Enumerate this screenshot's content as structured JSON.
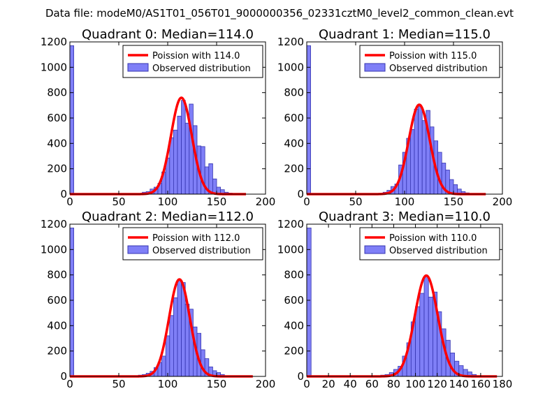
{
  "figure": {
    "suptitle": "Data file: modeM0/AS1T01_056T01_9000000356_02331cztM0_level2_common_clean.evt"
  },
  "colors": {
    "bar_fill": "#7f7ff7",
    "bar_edge": "#3535b0",
    "poisson_line": "#ff0000",
    "axes": "#000000"
  },
  "chart_data": [
    {
      "type": "bar",
      "quadrant": 0,
      "title": "Quadrant 0: Median=114.0",
      "median": 114.0,
      "xlim": [
        0,
        200
      ],
      "ylim": [
        0,
        1200
      ],
      "xticks": [
        0,
        50,
        100,
        150,
        200
      ],
      "yticks": [
        0,
        200,
        400,
        600,
        800,
        1000,
        1200
      ],
      "legend": {
        "position": "top-right",
        "entries": [
          "Poission with 114.0",
          "Observed distribution"
        ]
      },
      "bins": [
        {
          "x": 0,
          "count": 1170
        },
        {
          "x": 74,
          "count": 15
        },
        {
          "x": 78,
          "count": 20
        },
        {
          "x": 82,
          "count": 40
        },
        {
          "x": 86,
          "count": 55
        },
        {
          "x": 90,
          "count": 85
        },
        {
          "x": 94,
          "count": 175
        },
        {
          "x": 98,
          "count": 285
        },
        {
          "x": 102,
          "count": 445
        },
        {
          "x": 106,
          "count": 505
        },
        {
          "x": 110,
          "count": 615
        },
        {
          "x": 114,
          "count": 740
        },
        {
          "x": 118,
          "count": 560
        },
        {
          "x": 122,
          "count": 710
        },
        {
          "x": 126,
          "count": 540
        },
        {
          "x": 130,
          "count": 380
        },
        {
          "x": 134,
          "count": 375
        },
        {
          "x": 138,
          "count": 215
        },
        {
          "x": 142,
          "count": 240
        },
        {
          "x": 146,
          "count": 120
        },
        {
          "x": 150,
          "count": 55
        },
        {
          "x": 154,
          "count": 35
        },
        {
          "x": 158,
          "count": 15
        },
        {
          "x": 162,
          "count": 8
        }
      ],
      "poisson": {
        "label": "Poission with 114.0",
        "mean": 114.0,
        "peak": 760,
        "x_range": [
          0,
          180
        ]
      }
    },
    {
      "type": "bar",
      "quadrant": 1,
      "title": "Quadrant 1: Median=115.0",
      "median": 115.0,
      "xlim": [
        0,
        200
      ],
      "ylim": [
        0,
        1200
      ],
      "xticks": [
        0,
        50,
        100,
        150,
        200
      ],
      "yticks": [
        0,
        200,
        400,
        600,
        800,
        1000,
        1200
      ],
      "legend": {
        "position": "top-right",
        "entries": [
          "Poission with 115.0",
          "Observed distribution"
        ]
      },
      "bins": [
        {
          "x": 0,
          "count": 1170
        },
        {
          "x": 78,
          "count": 15
        },
        {
          "x": 82,
          "count": 30
        },
        {
          "x": 86,
          "count": 60
        },
        {
          "x": 90,
          "count": 80
        },
        {
          "x": 94,
          "count": 230
        },
        {
          "x": 98,
          "count": 330
        },
        {
          "x": 102,
          "count": 440
        },
        {
          "x": 106,
          "count": 510
        },
        {
          "x": 110,
          "count": 670
        },
        {
          "x": 114,
          "count": 690
        },
        {
          "x": 118,
          "count": 580
        },
        {
          "x": 122,
          "count": 660
        },
        {
          "x": 126,
          "count": 530
        },
        {
          "x": 130,
          "count": 420
        },
        {
          "x": 134,
          "count": 330
        },
        {
          "x": 138,
          "count": 245
        },
        {
          "x": 142,
          "count": 190
        },
        {
          "x": 146,
          "count": 115
        },
        {
          "x": 150,
          "count": 75
        },
        {
          "x": 154,
          "count": 40
        },
        {
          "x": 158,
          "count": 20
        },
        {
          "x": 162,
          "count": 10
        }
      ],
      "poisson": {
        "label": "Poission with 115.0",
        "mean": 115.0,
        "peak": 705,
        "x_range": [
          0,
          183
        ]
      }
    },
    {
      "type": "bar",
      "quadrant": 2,
      "title": "Quadrant 2: Median=112.0",
      "median": 112.0,
      "xlim": [
        0,
        200
      ],
      "ylim": [
        0,
        1200
      ],
      "xticks": [
        0,
        50,
        100,
        150,
        200
      ],
      "yticks": [
        0,
        200,
        400,
        600,
        800,
        1000,
        1200
      ],
      "legend": {
        "position": "top-right",
        "entries": [
          "Poission with 112.0",
          "Observed distribution"
        ]
      },
      "bins": [
        {
          "x": 0,
          "count": 1170
        },
        {
          "x": 70,
          "count": 10
        },
        {
          "x": 74,
          "count": 15
        },
        {
          "x": 78,
          "count": 25
        },
        {
          "x": 82,
          "count": 40
        },
        {
          "x": 86,
          "count": 70
        },
        {
          "x": 90,
          "count": 110
        },
        {
          "x": 94,
          "count": 160
        },
        {
          "x": 98,
          "count": 320
        },
        {
          "x": 102,
          "count": 480
        },
        {
          "x": 106,
          "count": 620
        },
        {
          "x": 110,
          "count": 755
        },
        {
          "x": 114,
          "count": 740
        },
        {
          "x": 118,
          "count": 570
        },
        {
          "x": 122,
          "count": 530
        },
        {
          "x": 126,
          "count": 390
        },
        {
          "x": 130,
          "count": 340
        },
        {
          "x": 134,
          "count": 210
        },
        {
          "x": 138,
          "count": 140
        },
        {
          "x": 142,
          "count": 75
        },
        {
          "x": 146,
          "count": 45
        },
        {
          "x": 150,
          "count": 30
        },
        {
          "x": 154,
          "count": 15
        }
      ],
      "poisson": {
        "label": "Poission with 112.0",
        "mean": 112.0,
        "peak": 765,
        "x_range": [
          0,
          187
        ]
      }
    },
    {
      "type": "bar",
      "quadrant": 3,
      "title": "Quadrant 3: Median=110.0",
      "median": 110.0,
      "xlim": [
        0,
        180
      ],
      "ylim": [
        0,
        1200
      ],
      "xticks": [
        0,
        20,
        40,
        60,
        80,
        100,
        120,
        140,
        160,
        180
      ],
      "yticks": [
        0,
        200,
        400,
        600,
        800,
        1000,
        1200
      ],
      "legend": {
        "position": "top-right",
        "entries": [
          "Poission with 110.0",
          "Observed distribution"
        ]
      },
      "bins": [
        {
          "x": 0,
          "count": 1170
        },
        {
          "x": 68,
          "count": 10
        },
        {
          "x": 72,
          "count": 15
        },
        {
          "x": 76,
          "count": 30
        },
        {
          "x": 80,
          "count": 55
        },
        {
          "x": 84,
          "count": 80
        },
        {
          "x": 88,
          "count": 160
        },
        {
          "x": 92,
          "count": 265
        },
        {
          "x": 96,
          "count": 430
        },
        {
          "x": 100,
          "count": 550
        },
        {
          "x": 104,
          "count": 655
        },
        {
          "x": 108,
          "count": 790
        },
        {
          "x": 112,
          "count": 625
        },
        {
          "x": 116,
          "count": 665
        },
        {
          "x": 120,
          "count": 510
        },
        {
          "x": 124,
          "count": 375
        },
        {
          "x": 128,
          "count": 285
        },
        {
          "x": 132,
          "count": 185
        },
        {
          "x": 136,
          "count": 120
        },
        {
          "x": 140,
          "count": 85
        },
        {
          "x": 144,
          "count": 55
        },
        {
          "x": 148,
          "count": 35
        },
        {
          "x": 152,
          "count": 15
        }
      ],
      "poisson": {
        "label": "Poission with 110.0",
        "mean": 110.0,
        "peak": 795,
        "x_range": [
          0,
          175
        ]
      }
    }
  ]
}
